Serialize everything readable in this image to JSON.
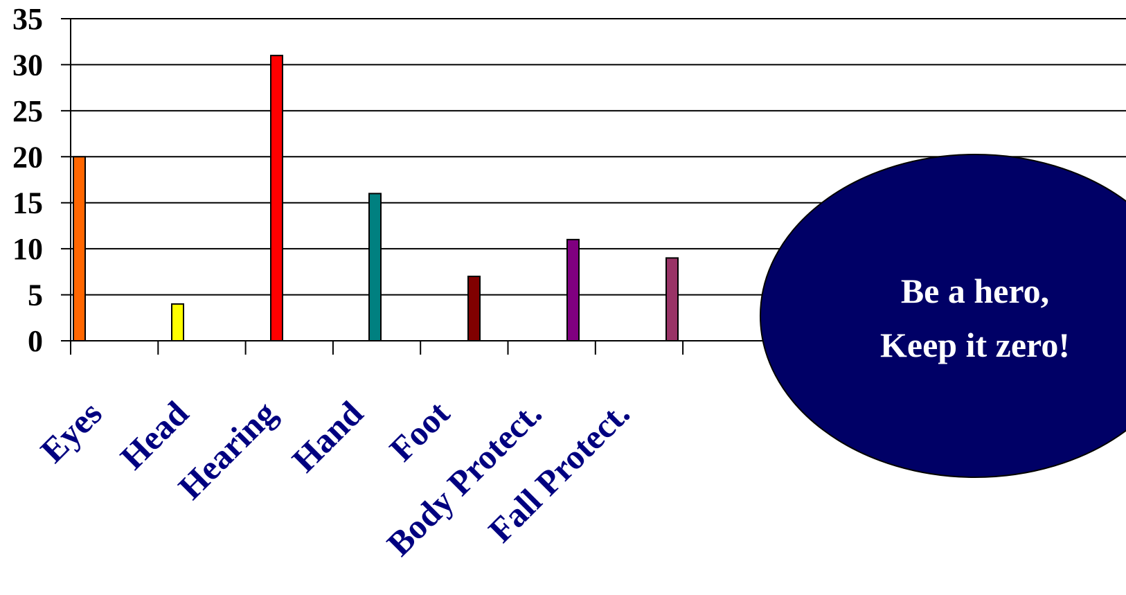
{
  "chart_data": {
    "type": "bar",
    "categories": [
      "Eyes",
      "Head",
      "Hearing",
      "Hand",
      "Foot",
      "Body Protect.",
      "Fall Protect."
    ],
    "values": [
      20,
      4,
      31,
      16,
      7,
      11,
      9
    ],
    "colors": [
      "#ff6600",
      "#ffff00",
      "#ff0000",
      "#008080",
      "#800000",
      "#800080",
      "#993366"
    ],
    "yticks": [
      0,
      5,
      10,
      15,
      20,
      25,
      30,
      35
    ],
    "ylim": [
      0,
      35
    ],
    "grid": true,
    "title": "",
    "xlabel": "",
    "ylabel": ""
  },
  "callout": {
    "line1": "Be a hero,",
    "line2": "Keep it zero!",
    "fill": "#000066"
  }
}
